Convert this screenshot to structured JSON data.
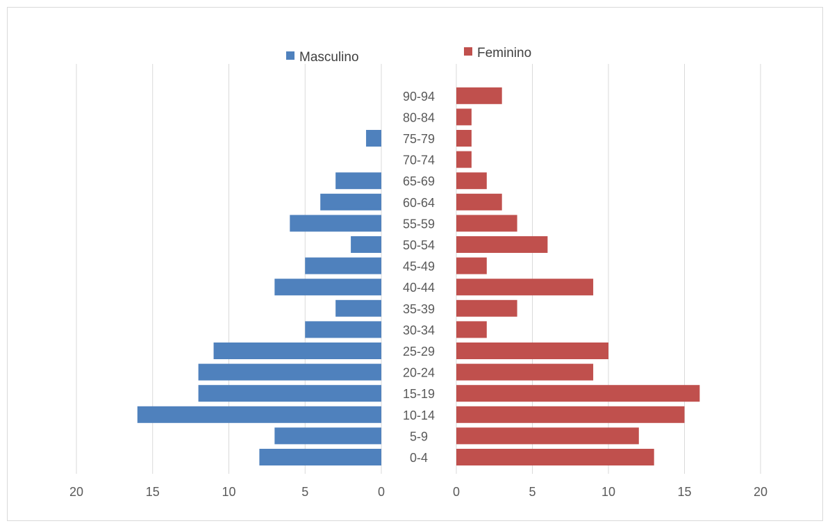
{
  "chart_data": {
    "type": "bar",
    "orientation": "horizontal",
    "layout": "population-pyramid",
    "title": "",
    "categories": [
      "0-4",
      "5-9",
      "10-14",
      "15-19",
      "20-24",
      "25-29",
      "30-34",
      "35-39",
      "40-44",
      "45-49",
      "50-54",
      "55-59",
      "60-64",
      "65-69",
      "70-74",
      "75-79",
      "80-84",
      "90-94"
    ],
    "series": [
      {
        "name": "Masculino",
        "color": "#4f81bd",
        "side": "left",
        "values": [
          8,
          7,
          16,
          12,
          12,
          11,
          5,
          3,
          7,
          5,
          2,
          6,
          4,
          3,
          0,
          1,
          0,
          0
        ]
      },
      {
        "name": "Feminino",
        "color": "#c0504d",
        "side": "right",
        "values": [
          13,
          12,
          15,
          16,
          9,
          10,
          2,
          4,
          9,
          2,
          6,
          4,
          3,
          2,
          1,
          1,
          1,
          3
        ]
      }
    ],
    "xlim": [
      0,
      20
    ],
    "x_ticks": [
      0,
      5,
      10,
      15,
      20
    ],
    "x_tick_labels_left": [
      "20",
      "15",
      "10",
      "5",
      "0"
    ],
    "x_tick_labels_right": [
      "0",
      "5",
      "10",
      "15",
      "20"
    ],
    "grid": "vertical",
    "legend_position": "top"
  }
}
